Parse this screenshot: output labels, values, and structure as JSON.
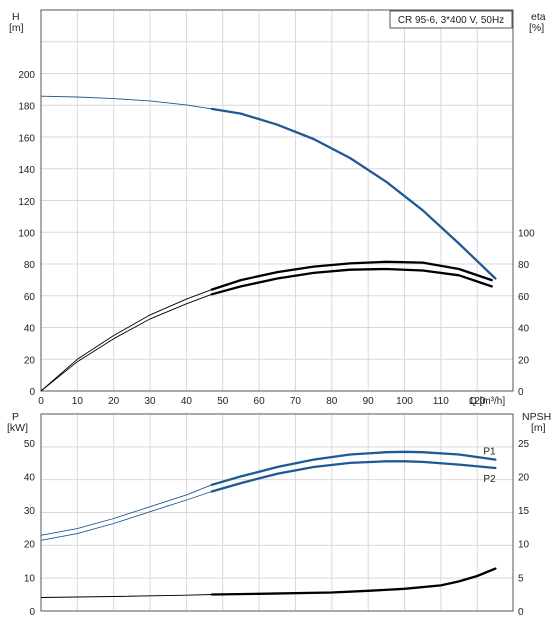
{
  "chart_data": [
    {
      "type": "line",
      "title": "CR 95-6, 3*400 V, 50Hz",
      "xlabel": "Q [m³/h]",
      "xlim": [
        0,
        130
      ],
      "xticks": [
        0,
        10,
        20,
        30,
        40,
        50,
        60,
        70,
        80,
        90,
        100,
        110,
        120
      ],
      "y_left": {
        "label": "H",
        "unit": "[m]",
        "lim": [
          0,
          220
        ],
        "ticks": [
          0,
          20,
          40,
          60,
          80,
          100,
          120,
          140,
          160,
          180,
          200
        ]
      },
      "y_right": {
        "label": "eta",
        "unit": "[%]",
        "lim": [
          0,
          220
        ],
        "ticks": [
          0,
          20,
          40,
          60,
          80,
          100
        ]
      },
      "grid": true,
      "series": [
        {
          "key": "H",
          "axis": "left",
          "color": "#1f5a96",
          "x": [
            0,
            10,
            20,
            30,
            40,
            47,
            55,
            65,
            75,
            85,
            95,
            105,
            115,
            125
          ],
          "y": [
            186,
            185.5,
            184.5,
            183,
            180.5,
            178,
            175,
            168,
            159,
            147,
            132,
            114,
            93,
            71
          ]
        },
        {
          "key": "eta-upper",
          "axis": "right",
          "color": "#000000",
          "x": [
            0,
            10,
            20,
            30,
            40,
            47,
            55,
            65,
            75,
            85,
            95,
            105,
            115,
            124
          ],
          "y": [
            0,
            20,
            35,
            48,
            58,
            64,
            70,
            75,
            78.5,
            80.5,
            81.5,
            81,
            77,
            70
          ]
        },
        {
          "key": "eta-lower",
          "axis": "right",
          "color": "#000000",
          "x": [
            0,
            10,
            20,
            30,
            40,
            47,
            55,
            65,
            75,
            85,
            95,
            105,
            115,
            124
          ],
          "y": [
            0,
            18.5,
            33,
            45.5,
            55,
            61,
            66,
            71,
            74.5,
            76.5,
            77,
            76,
            73,
            66
          ]
        }
      ]
    },
    {
      "type": "line",
      "xlim": [
        0,
        130
      ],
      "y_left": {
        "label": "P",
        "unit": "[kW]",
        "lim": [
          0,
          50
        ],
        "ticks": [
          0,
          10,
          20,
          30,
          40,
          50
        ]
      },
      "y_right": {
        "label": "NPSH",
        "unit": "[m]",
        "lim": [
          0,
          25
        ],
        "ticks": [
          0,
          5,
          10,
          15,
          20,
          25
        ]
      },
      "grid": true,
      "series": [
        {
          "name": "P1",
          "axis": "left",
          "color": "#1f5a96",
          "x": [
            0,
            10,
            20,
            30,
            40,
            47,
            55,
            65,
            75,
            85,
            95,
            100,
            105,
            115,
            125
          ],
          "y": [
            22.5,
            24.5,
            27.5,
            31,
            34.5,
            37.5,
            40,
            42.8,
            45,
            46.5,
            47.2,
            47.3,
            47.2,
            46.5,
            45
          ]
        },
        {
          "name": "P2",
          "axis": "left",
          "color": "#1f5a96",
          "x": [
            0,
            10,
            20,
            30,
            40,
            47,
            55,
            65,
            75,
            85,
            95,
            100,
            105,
            115,
            125
          ],
          "y": [
            21,
            23,
            26,
            29.5,
            33,
            35.5,
            38,
            40.8,
            42.8,
            44,
            44.5,
            44.5,
            44.3,
            43.5,
            42.5
          ]
        },
        {
          "key": "NPSH",
          "axis": "right",
          "color": "#000000",
          "x": [
            0,
            20,
            40,
            47,
            60,
            80,
            90,
            100,
            110,
            115,
            120,
            125
          ],
          "y": [
            2,
            2.15,
            2.35,
            2.45,
            2.55,
            2.75,
            3,
            3.3,
            3.8,
            4.4,
            5.2,
            6.3
          ]
        }
      ]
    }
  ]
}
